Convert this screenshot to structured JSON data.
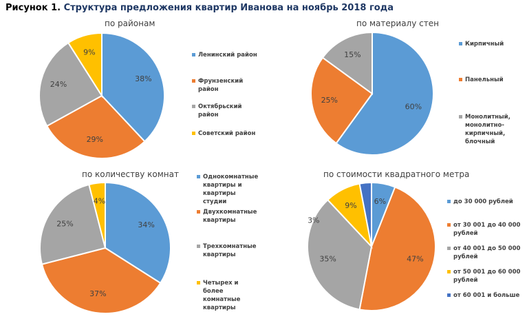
{
  "figure": {
    "number_label": "Рисунок 1.",
    "title": "Структура предложения квартир Иванова на ноябрь 2018 года"
  },
  "colors": {
    "blue": "#5b9bd5",
    "orange": "#ed7d31",
    "gray": "#a5a5a5",
    "yellow": "#ffc000",
    "navy": "#4472c4"
  },
  "chart_data": [
    {
      "type": "pie",
      "title": "по районам",
      "categories": [
        "Ленинский район",
        "Фрунзенский район",
        "Октябрьский район",
        "Советский район"
      ],
      "values": [
        38,
        29,
        24,
        9
      ],
      "labels": [
        "38%",
        "29%",
        "24%",
        "9%"
      ],
      "colors": [
        "#5b9bd5",
        "#ed7d31",
        "#a5a5a5",
        "#ffc000"
      ],
      "legend": "right"
    },
    {
      "type": "pie",
      "title": "по материалу стен",
      "categories": [
        "Кирпичный",
        "Панельный",
        "Монолитный, монолитно-кирпичный, блочный"
      ],
      "values": [
        60,
        25,
        15
      ],
      "labels": [
        "60%",
        "25%",
        "15%"
      ],
      "colors": [
        "#5b9bd5",
        "#ed7d31",
        "#a5a5a5"
      ],
      "legend": "right"
    },
    {
      "type": "pie",
      "title": "по количеству комнат",
      "categories": [
        "Однокомнатные квартиры и квартиры студии",
        "Двухкомнатные квартиры",
        "Трехкомнатные квартиры",
        "Четырех и более комнатные квартиры"
      ],
      "values": [
        34,
        37,
        25,
        4
      ],
      "labels": [
        "34%",
        "37%",
        "25%",
        "4%"
      ],
      "colors": [
        "#5b9bd5",
        "#ed7d31",
        "#a5a5a5",
        "#ffc000"
      ],
      "legend": "right"
    },
    {
      "type": "pie",
      "title": "по стоимости квадратного метра",
      "categories": [
        "до 30 000 рублей",
        "от 30 001 до 40 000 рублей",
        "от 40 001 до 50 000 рублей",
        "от 50 001 до 60 000 рублей",
        "от 60 001 и больше"
      ],
      "values": [
        6,
        47,
        35,
        9,
        3
      ],
      "labels": [
        "6%",
        "47%",
        "35%",
        "9%",
        "3%"
      ],
      "colors": [
        "#5b9bd5",
        "#ed7d31",
        "#a5a5a5",
        "#ffc000",
        "#4472c4"
      ],
      "legend": "right"
    }
  ]
}
